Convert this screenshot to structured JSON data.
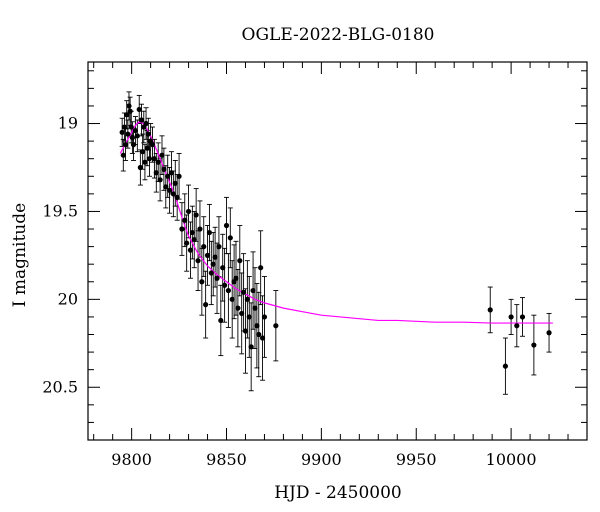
{
  "chart_data": {
    "type": "scatter",
    "title": "OGLE-2022-BLG-0180",
    "xlabel": "HJD - 2450000",
    "ylabel": "I magnitude",
    "xlim": [
      9777,
      10040
    ],
    "ylim": [
      20.8,
      18.65
    ],
    "y_inverted": true,
    "x_ticks": [
      9800,
      9850,
      9900,
      9950,
      10000
    ],
    "y_ticks": [
      19,
      19.5,
      20,
      20.5
    ],
    "x_tick_labels": [
      "9800",
      "9850",
      "9900",
      "9950",
      "10000"
    ],
    "y_tick_labels": [
      "19",
      "19.5",
      "20",
      "20.5"
    ],
    "marker_color": "#000000",
    "model_color": "#ff00ff",
    "series": [
      {
        "kind": "points_with_errorbars",
        "x": [
          9795.0,
          9795.6,
          9796.2,
          9796.8,
          9797.4,
          9798.0,
          9798.6,
          9799.2,
          9799.8,
          9800.4,
          9801.0,
          9802.0,
          9803.0,
          9804.0,
          9804.6,
          9805.2,
          9805.8,
          9806.4,
          9807.0,
          9807.6,
          9808.2,
          9808.8,
          9809.4,
          9810.0,
          9811.0,
          9812.0,
          9813.0,
          9814.0,
          9815.0,
          9816.0,
          9817.0,
          9818.0,
          9819.0,
          9820.0,
          9821.0,
          9822.0,
          9823.0,
          9824.0,
          9825.0,
          9826.5,
          9828.0,
          9829.0,
          9830.0,
          9831.0,
          9832.0,
          9833.0,
          9834.0,
          9835.0,
          9836.0,
          9837.0,
          9838.0,
          9839.0,
          9840.0,
          9841.0,
          9842.0,
          9843.0,
          9844.0,
          9845.0,
          9846.0,
          9847.0,
          9848.0,
          9849.0,
          9850.0,
          9851.0,
          9852.0,
          9853.0,
          9854.0,
          9855.0,
          9856.0,
          9857.0,
          9858.0,
          9859.0,
          9860.0,
          9861.0,
          9862.0,
          9863.0,
          9864.0,
          9865.0,
          9866.0,
          9867.0,
          9868.0,
          9869.0,
          9870.0,
          9876.0,
          9989.0,
          9997.0,
          10000.0,
          10003.0,
          10006.0,
          10012.0,
          10020.0
        ],
        "y": [
          19.05,
          19.18,
          19.02,
          19.12,
          18.95,
          19.06,
          18.9,
          18.93,
          19.02,
          19.08,
          19.12,
          19.04,
          19.07,
          18.92,
          19.25,
          18.98,
          19.16,
          19.02,
          19.22,
          19.0,
          19.14,
          19.06,
          19.2,
          19.1,
          19.12,
          19.2,
          19.28,
          19.22,
          19.32,
          19.18,
          19.26,
          19.36,
          19.3,
          19.38,
          19.28,
          19.4,
          19.34,
          19.42,
          19.3,
          19.6,
          19.55,
          19.68,
          19.5,
          19.72,
          19.62,
          19.66,
          19.52,
          19.78,
          19.6,
          19.9,
          19.7,
          20.03,
          19.75,
          19.62,
          19.85,
          19.8,
          19.76,
          19.88,
          19.7,
          20.12,
          19.82,
          19.92,
          19.58,
          19.95,
          19.65,
          20.0,
          19.9,
          19.88,
          20.05,
          19.78,
          20.08,
          19.96,
          20.18,
          20.0,
          20.1,
          20.27,
          19.95,
          20.05,
          20.15,
          20.2,
          19.82,
          20.22,
          20.1,
          20.15,
          20.06,
          20.38,
          20.1,
          20.15,
          20.1,
          20.26,
          20.19
        ],
        "yerr": [
          0.08,
          0.09,
          0.08,
          0.09,
          0.08,
          0.08,
          0.08,
          0.08,
          0.09,
          0.09,
          0.09,
          0.08,
          0.09,
          0.08,
          0.1,
          0.09,
          0.1,
          0.09,
          0.1,
          0.09,
          0.1,
          0.09,
          0.1,
          0.1,
          0.1,
          0.11,
          0.11,
          0.11,
          0.12,
          0.11,
          0.12,
          0.12,
          0.12,
          0.13,
          0.12,
          0.13,
          0.13,
          0.13,
          0.13,
          0.15,
          0.15,
          0.16,
          0.15,
          0.16,
          0.15,
          0.16,
          0.15,
          0.17,
          0.16,
          0.19,
          0.17,
          0.19,
          0.17,
          0.16,
          0.18,
          0.18,
          0.17,
          0.2,
          0.17,
          0.2,
          0.19,
          0.21,
          0.16,
          0.21,
          0.17,
          0.22,
          0.21,
          0.21,
          0.22,
          0.2,
          0.23,
          0.22,
          0.24,
          0.22,
          0.23,
          0.25,
          0.22,
          0.23,
          0.24,
          0.24,
          0.21,
          0.24,
          0.23,
          0.2,
          0.13,
          0.16,
          0.1,
          0.12,
          0.11,
          0.17,
          0.11
        ]
      },
      {
        "kind": "model_curve",
        "x": [
          9794,
          9796,
          9798,
          9800,
          9802,
          9804,
          9806,
          9808,
          9810,
          9812,
          9815,
          9818,
          9821,
          9824,
          9827,
          9830,
          9835,
          9840,
          9845,
          9850,
          9855,
          9860,
          9865,
          9870,
          9880,
          9890,
          9900,
          9910,
          9920,
          9930,
          9940,
          9950,
          9960,
          9975,
          9990,
          10005,
          10022
        ],
        "y": [
          19.17,
          19.13,
          19.09,
          19.05,
          19.01,
          18.99,
          19.0,
          19.03,
          19.07,
          19.12,
          19.2,
          19.28,
          19.36,
          19.45,
          19.55,
          19.64,
          19.74,
          19.81,
          19.86,
          19.9,
          19.94,
          19.97,
          20.0,
          20.02,
          20.05,
          20.07,
          20.09,
          20.1,
          20.11,
          20.12,
          20.12,
          20.125,
          20.13,
          20.13,
          20.135,
          20.135,
          20.135
        ]
      }
    ],
    "grid": false,
    "legend": "none"
  }
}
